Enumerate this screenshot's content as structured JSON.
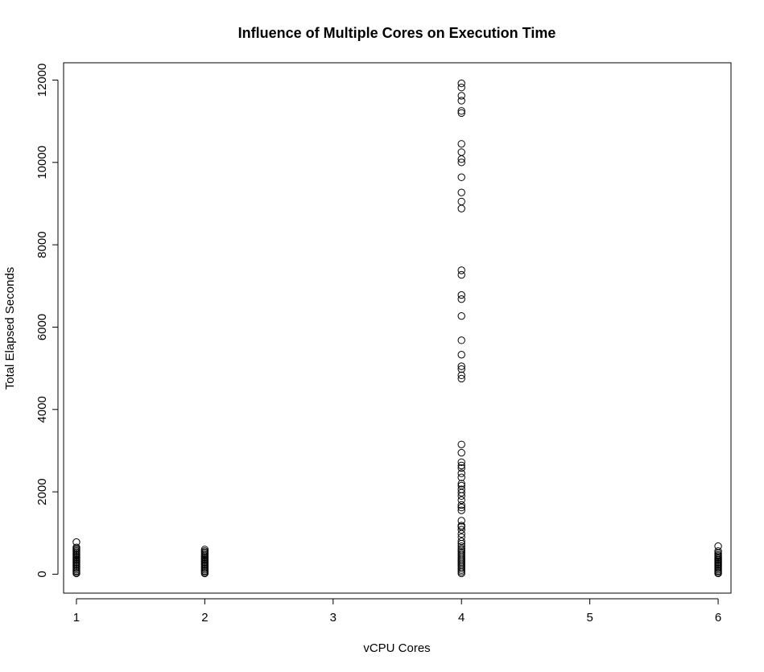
{
  "chart_data": {
    "type": "scatter",
    "title": "Influence of Multiple Cores on Execution Time",
    "xlabel": "vCPU Cores",
    "ylabel": "Total Elapsed Seconds",
    "xlim": [
      0.9,
      6.1
    ],
    "ylim": [
      -460,
      12420
    ],
    "xticks": [
      1,
      2,
      3,
      4,
      5,
      6
    ],
    "yticks": [
      0,
      2000,
      4000,
      6000,
      8000,
      10000,
      12000
    ],
    "grid": false,
    "legend": "none",
    "marker": "open-circle",
    "series": [
      {
        "points": [
          [
            1,
            20
          ],
          [
            1,
            50
          ],
          [
            1,
            80
          ],
          [
            1,
            110
          ],
          [
            1,
            140
          ],
          [
            1,
            170
          ],
          [
            1,
            200
          ],
          [
            1,
            230
          ],
          [
            1,
            260
          ],
          [
            1,
            290
          ],
          [
            1,
            320
          ],
          [
            1,
            350
          ],
          [
            1,
            380
          ],
          [
            1,
            410
          ],
          [
            1,
            440
          ],
          [
            1,
            470
          ],
          [
            1,
            500
          ],
          [
            1,
            530
          ],
          [
            1,
            560
          ],
          [
            1,
            590
          ],
          [
            1,
            620
          ],
          [
            1,
            650
          ],
          [
            1,
            780
          ],
          [
            2,
            20
          ],
          [
            2,
            50
          ],
          [
            2,
            80
          ],
          [
            2,
            110
          ],
          [
            2,
            140
          ],
          [
            2,
            170
          ],
          [
            2,
            200
          ],
          [
            2,
            230
          ],
          [
            2,
            260
          ],
          [
            2,
            290
          ],
          [
            2,
            320
          ],
          [
            2,
            350
          ],
          [
            2,
            380
          ],
          [
            2,
            410
          ],
          [
            2,
            440
          ],
          [
            2,
            470
          ],
          [
            2,
            500
          ],
          [
            2,
            530
          ],
          [
            2,
            560
          ],
          [
            2,
            600
          ],
          [
            4,
            20
          ],
          [
            4,
            60
          ],
          [
            4,
            100
          ],
          [
            4,
            140
          ],
          [
            4,
            180
          ],
          [
            4,
            220
          ],
          [
            4,
            260
          ],
          [
            4,
            300
          ],
          [
            4,
            340
          ],
          [
            4,
            380
          ],
          [
            4,
            420
          ],
          [
            4,
            460
          ],
          [
            4,
            500
          ],
          [
            4,
            540
          ],
          [
            4,
            580
          ],
          [
            4,
            620
          ],
          [
            4,
            680
          ],
          [
            4,
            740
          ],
          [
            4,
            800
          ],
          [
            4,
            900
          ],
          [
            4,
            980
          ],
          [
            4,
            1080
          ],
          [
            4,
            1150
          ],
          [
            4,
            1180
          ],
          [
            4,
            1300
          ],
          [
            4,
            1550
          ],
          [
            4,
            1620
          ],
          [
            4,
            1680
          ],
          [
            4,
            1800
          ],
          [
            4,
            1900
          ],
          [
            4,
            1980
          ],
          [
            4,
            2060
          ],
          [
            4,
            2150
          ],
          [
            4,
            2200
          ],
          [
            4,
            2350
          ],
          [
            4,
            2450
          ],
          [
            4,
            2580
          ],
          [
            4,
            2640
          ],
          [
            4,
            2720
          ],
          [
            4,
            2950
          ],
          [
            4,
            3150
          ],
          [
            4,
            4750
          ],
          [
            4,
            4830
          ],
          [
            4,
            4980
          ],
          [
            4,
            5050
          ],
          [
            4,
            5330
          ],
          [
            4,
            5680
          ],
          [
            4,
            6270
          ],
          [
            4,
            6680
          ],
          [
            4,
            6780
          ],
          [
            4,
            7270
          ],
          [
            4,
            7380
          ],
          [
            4,
            8880
          ],
          [
            4,
            9050
          ],
          [
            4,
            9270
          ],
          [
            4,
            9640
          ],
          [
            4,
            10000
          ],
          [
            4,
            10080
          ],
          [
            4,
            10250
          ],
          [
            4,
            10450
          ],
          [
            4,
            11200
          ],
          [
            4,
            11250
          ],
          [
            4,
            11500
          ],
          [
            4,
            11620
          ],
          [
            4,
            11820
          ],
          [
            4,
            11920
          ],
          [
            6,
            20
          ],
          [
            6,
            50
          ],
          [
            6,
            80
          ],
          [
            6,
            110
          ],
          [
            6,
            140
          ],
          [
            6,
            170
          ],
          [
            6,
            200
          ],
          [
            6,
            230
          ],
          [
            6,
            260
          ],
          [
            6,
            290
          ],
          [
            6,
            320
          ],
          [
            6,
            350
          ],
          [
            6,
            380
          ],
          [
            6,
            410
          ],
          [
            6,
            440
          ],
          [
            6,
            470
          ],
          [
            6,
            510
          ],
          [
            6,
            560
          ],
          [
            6,
            680
          ]
        ]
      }
    ]
  }
}
